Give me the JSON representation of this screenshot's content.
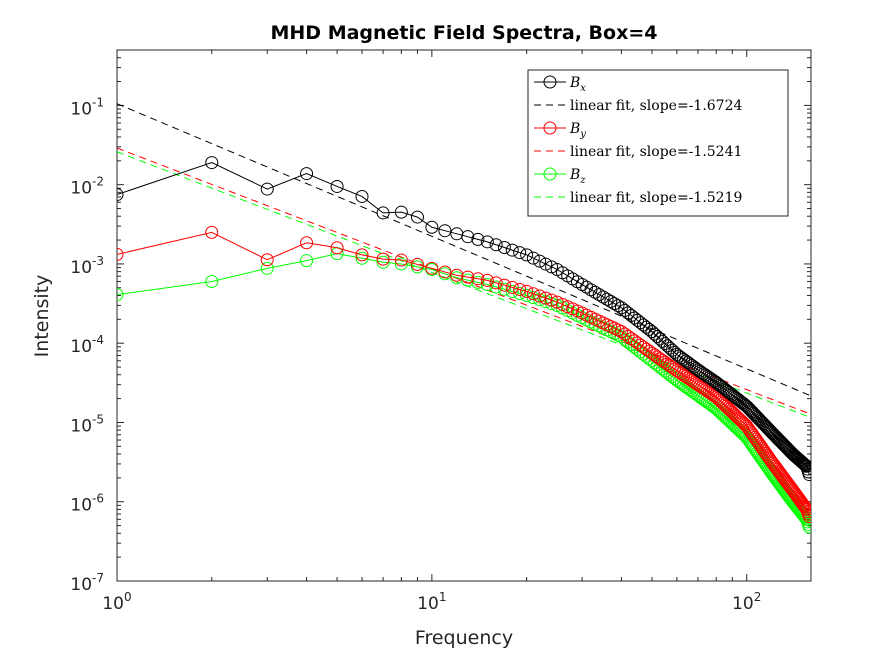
{
  "chart_data": {
    "type": "line",
    "title": "MHD Magnetic Field Spectra, Box=4",
    "xlabel": "Frequency",
    "ylabel": "Intensity",
    "xscale": "log",
    "yscale": "log",
    "xlim": [
      1,
      160
    ],
    "ylim": [
      1e-07,
      0.5
    ],
    "xticks": [
      {
        "value": 1,
        "base": "10",
        "exp": "0"
      },
      {
        "value": 10,
        "base": "10",
        "exp": "1"
      },
      {
        "value": 100,
        "base": "10",
        "exp": "2"
      }
    ],
    "yticks": [
      {
        "value": 1e-07,
        "base": "10",
        "exp": "-7"
      },
      {
        "value": 1e-06,
        "base": "10",
        "exp": "-6"
      },
      {
        "value": 1e-05,
        "base": "10",
        "exp": "-5"
      },
      {
        "value": 0.0001,
        "base": "10",
        "exp": "-4"
      },
      {
        "value": 0.001,
        "base": "10",
        "exp": "-3"
      },
      {
        "value": 0.01,
        "base": "10",
        "exp": "-2"
      },
      {
        "value": 0.1,
        "base": "10",
        "exp": "-1"
      }
    ],
    "grid": false,
    "legend_position": "top-right",
    "series": [
      {
        "symbol": "B",
        "subscript": "x",
        "color": "#000000",
        "fit_label": "linear fit, slope=-1.6724",
        "slope": -1.6724,
        "fit_intercept_at_1": 0.105,
        "anchors": [
          [
            1,
            0.0075
          ],
          [
            2,
            0.019
          ],
          [
            3,
            0.0088
          ],
          [
            4,
            0.0138
          ],
          [
            5,
            0.0095
          ],
          [
            6,
            0.0071
          ],
          [
            7,
            0.0044
          ],
          [
            8,
            0.0045
          ],
          [
            9,
            0.0039
          ],
          [
            10,
            0.0029
          ],
          [
            12,
            0.0024
          ],
          [
            15,
            0.0019
          ],
          [
            20,
            0.0013
          ],
          [
            25,
            0.00085
          ],
          [
            30,
            0.00055
          ],
          [
            40,
            0.00028
          ],
          [
            50,
            0.00014
          ],
          [
            60,
            7.2e-05
          ],
          [
            70,
            4.6e-05
          ],
          [
            80,
            3.2e-05
          ],
          [
            100,
            1.6e-05
          ],
          [
            120,
            7.5e-06
          ],
          [
            140,
            4e-06
          ],
          [
            155,
            2.8e-06
          ],
          [
            158,
            2.2e-06
          ]
        ]
      },
      {
        "symbol": "B",
        "subscript": "y",
        "color": "#ff0000",
        "fit_label": "linear fit, slope=-1.5241",
        "slope": -1.5241,
        "fit_intercept_at_1": 0.029,
        "anchors": [
          [
            1,
            0.00132
          ],
          [
            2,
            0.0025
          ],
          [
            3,
            0.00113
          ],
          [
            4,
            0.00185
          ],
          [
            5,
            0.0016
          ],
          [
            6,
            0.0013
          ],
          [
            7,
            0.00115
          ],
          [
            8,
            0.00112
          ],
          [
            10,
            0.00088
          ],
          [
            12,
            0.00072
          ],
          [
            15,
            0.00062
          ],
          [
            20,
            0.00045
          ],
          [
            25,
            0.00033
          ],
          [
            30,
            0.00024
          ],
          [
            40,
            0.00014
          ],
          [
            50,
            7.5e-05
          ],
          [
            60,
            4.5e-05
          ],
          [
            70,
            3e-05
          ],
          [
            80,
            2.1e-05
          ],
          [
            100,
            9e-06
          ],
          [
            120,
            3.2e-06
          ],
          [
            140,
            1.4e-06
          ],
          [
            155,
            8e-07
          ],
          [
            158,
            6.5e-07
          ]
        ]
      },
      {
        "symbol": "B",
        "subscript": "z",
        "color": "#00ff00",
        "fit_label": "linear fit, slope=-1.5219",
        "slope": -1.5219,
        "fit_intercept_at_1": 0.026,
        "anchors": [
          [
            1,
            0.00041
          ],
          [
            2,
            0.0006
          ],
          [
            3,
            0.00088
          ],
          [
            4,
            0.0011
          ],
          [
            5,
            0.00135
          ],
          [
            6,
            0.00118
          ],
          [
            7,
            0.00105
          ],
          [
            8,
            0.001
          ],
          [
            10,
            0.00085
          ],
          [
            12,
            0.00067
          ],
          [
            15,
            0.00055
          ],
          [
            20,
            0.0004
          ],
          [
            25,
            0.0003
          ],
          [
            30,
            0.00021
          ],
          [
            40,
            0.00012
          ],
          [
            50,
            6e-05
          ],
          [
            60,
            3.4e-05
          ],
          [
            70,
            2.2e-05
          ],
          [
            80,
            1.5e-05
          ],
          [
            100,
            6.5e-06
          ],
          [
            120,
            2.3e-06
          ],
          [
            140,
            1e-06
          ],
          [
            155,
            6e-07
          ],
          [
            158,
            4.8e-07
          ]
        ]
      }
    ]
  }
}
